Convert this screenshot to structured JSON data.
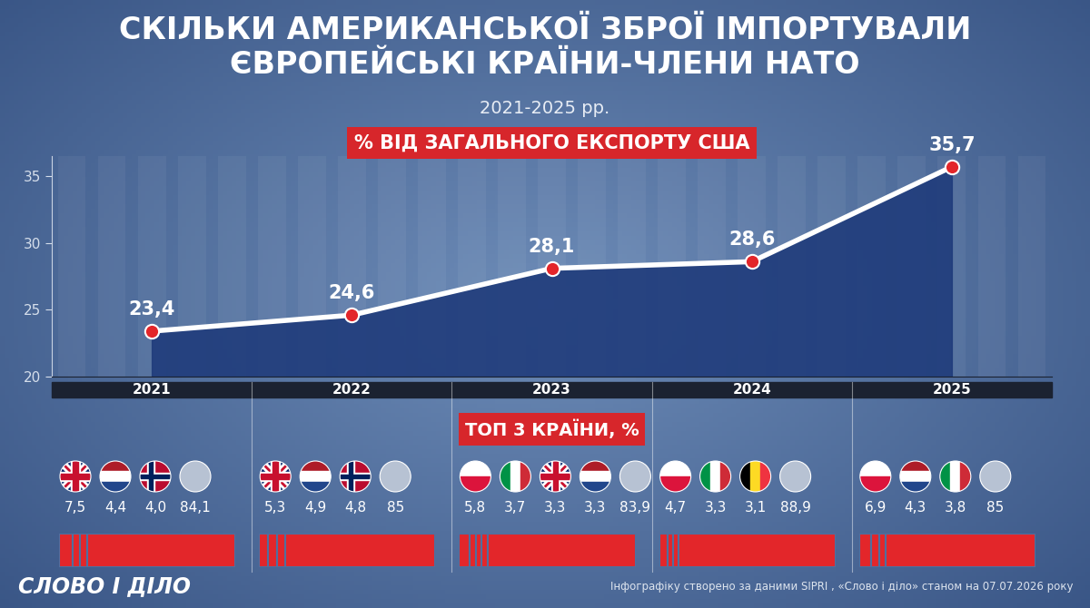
{
  "header": {
    "title": "СКІЛЬКИ АМЕРИКАНСЬКОЇ ЗБРОЇ ІМПОРТУВАЛИ ЄВРОПЕЙСЬКІ КРАЇНИ-ЧЛЕНИ НАТО",
    "subtitle": "2021-2025 рр."
  },
  "chart_data": [
    {
      "type": "line",
      "title": "% ВІД ЗАГАЛЬНОГО ЕКСПОРТУ США",
      "categories": [
        "2021",
        "2022",
        "2023",
        "2024",
        "2025"
      ],
      "values": [
        23.4,
        24.6,
        28.1,
        28.6,
        35.7
      ],
      "value_labels": [
        "23,4",
        "24,6",
        "28,1",
        "28,6",
        "35,7"
      ],
      "ylim": [
        20,
        36.5
      ],
      "yticks": [
        20,
        25,
        30,
        35
      ],
      "color": "#ffffff",
      "marker": "o",
      "data_labels": true,
      "grid": false
    },
    {
      "type": "bar",
      "orientation": "horizontal",
      "stacked": true,
      "title": "ТОП 3 КРАЇНИ, %",
      "color": "#e3262a",
      "data_labels": true,
      "tick_labels": false,
      "groups": [
        {
          "values": [
            7.5,
            4.4,
            4.0,
            84.1
          ],
          "value_labels": [
            "7,5",
            "4,4",
            "4,0",
            "84,1"
          ],
          "flags": [
            {
              "marker": "cross",
              "colors": [
                "#012169",
                "#ffffff",
                "#c8102e"
              ]
            },
            {
              "marker": "horizontal",
              "colors": [
                "#ae1c28",
                "#ffffff",
                "#21468b"
              ]
            },
            {
              "marker": "nordic",
              "colors": [
                "#ba0c2f",
                "#ffffff",
                "#00205b"
              ]
            },
            {
              "marker": "plain",
              "colors": [
                "#b7c2d3"
              ]
            }
          ]
        },
        {
          "values": [
            5.3,
            4.9,
            4.8,
            85
          ],
          "value_labels": [
            "5,3",
            "4,9",
            "4,8",
            "85"
          ],
          "flags": [
            {
              "marker": "cross",
              "colors": [
                "#012169",
                "#ffffff",
                "#c8102e"
              ]
            },
            {
              "marker": "horizontal",
              "colors": [
                "#ae1c28",
                "#ffffff",
                "#21468b"
              ]
            },
            {
              "marker": "nordic",
              "colors": [
                "#ba0c2f",
                "#ffffff",
                "#00205b"
              ]
            },
            {
              "marker": "plain",
              "colors": [
                "#b7c2d3"
              ]
            }
          ]
        },
        {
          "values": [
            5.8,
            3.7,
            3.3,
            3.3,
            83.9
          ],
          "value_labels": [
            "5,8",
            "3,7",
            "3,3",
            "3,3",
            "83,9"
          ],
          "flags": [
            {
              "marker": "horizontal",
              "colors": [
                "#ffffff",
                "#dc143c"
              ]
            },
            {
              "marker": "vertical",
              "colors": [
                "#009246",
                "#ffffff",
                "#ce2b37"
              ]
            },
            {
              "marker": "cross",
              "colors": [
                "#012169",
                "#ffffff",
                "#c8102e"
              ]
            },
            {
              "marker": "horizontal",
              "colors": [
                "#ae1c28",
                "#ffffff",
                "#21468b"
              ]
            },
            {
              "marker": "plain",
              "colors": [
                "#b7c2d3"
              ]
            }
          ]
        },
        {
          "values": [
            4.7,
            3.3,
            3.1,
            88.9
          ],
          "value_labels": [
            "4,7",
            "3,3",
            "3,1",
            "88,9"
          ],
          "flags": [
            {
              "marker": "horizontal",
              "colors": [
                "#ffffff",
                "#dc143c"
              ]
            },
            {
              "marker": "vertical",
              "colors": [
                "#009246",
                "#ffffff",
                "#ce2b37"
              ]
            },
            {
              "marker": "vertical",
              "colors": [
                "#000000",
                "#fdda24",
                "#ef3340"
              ]
            },
            {
              "marker": "plain",
              "colors": [
                "#b7c2d3"
              ]
            }
          ]
        },
        {
          "values": [
            6.9,
            4.3,
            3.8,
            85
          ],
          "value_labels": [
            "6,9",
            "4,3",
            "3,8",
            "85"
          ],
          "flags": [
            {
              "marker": "horizontal",
              "colors": [
                "#ffffff",
                "#dc143c"
              ]
            },
            {
              "marker": "horizontal",
              "colors": [
                "#ae1c28",
                "#ffffff",
                "#21468b"
              ]
            },
            {
              "marker": "vertical",
              "colors": [
                "#009246",
                "#ffffff",
                "#ce2b37"
              ]
            },
            {
              "marker": "plain",
              "colors": [
                "#b7c2d3"
              ]
            }
          ]
        }
      ]
    }
  ],
  "footer": {
    "logo": "СЛОВО І ДІЛО",
    "source": "Інфографіку створено за даними SIPRI , «Слово і діло» станом на 07.07.2026 року"
  }
}
